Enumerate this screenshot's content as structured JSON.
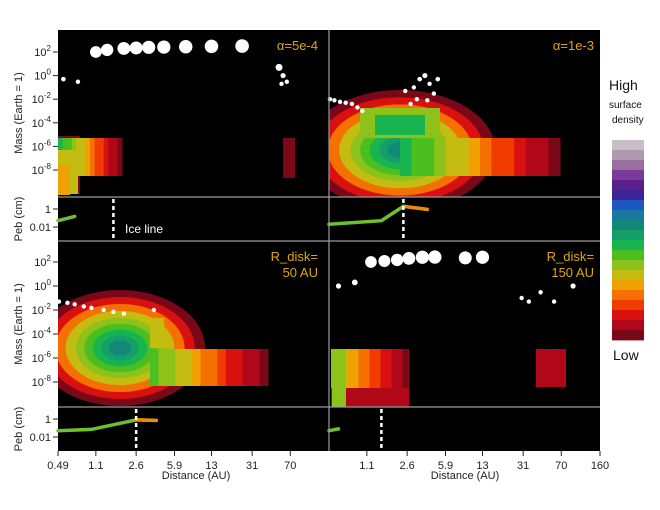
{
  "chart_data": {
    "type": "heatmap",
    "x": {
      "label": "Distance (AU)",
      "scale": "log",
      "ticks": [
        "0.49",
        "1.1",
        "2.6",
        "5.9",
        "13",
        "31",
        "70",
        "160"
      ],
      "range": [
        0.49,
        160
      ]
    },
    "y_mass": {
      "label": "Mass (Earth = 1)",
      "scale": "log",
      "ticks": [
        "10^2",
        "10^0",
        "10^-2",
        "10^-4",
        "10^-6",
        "10^-8"
      ]
    },
    "y_peb": {
      "label": "Peb (cm)",
      "scale": "log",
      "ticks": [
        "1",
        "0.01"
      ]
    },
    "colorbar": {
      "high": "High",
      "high_sub": [
        "surface",
        "density"
      ],
      "low": "Low",
      "colors": [
        "#c8c0c8",
        "#b098b0",
        "#9870a0",
        "#7a3c98",
        "#5a1f8c",
        "#3c2494",
        "#1c58c0",
        "#1878a0",
        "#138878",
        "#12a068",
        "#18b450",
        "#4cbf20",
        "#8cc21a",
        "#c4bc10",
        "#f0a000",
        "#f47000",
        "#f03c00",
        "#d81010",
        "#b00818",
        "#7a0818"
      ]
    },
    "panels": [
      {
        "id": "top-left",
        "annotation": [
          "α=5e-4"
        ],
        "planets": [
          {
            "x": 1.1,
            "m": 100
          },
          {
            "x": 1.4,
            "m": 150
          },
          {
            "x": 2.0,
            "m": 200
          },
          {
            "x": 2.6,
            "m": 220
          },
          {
            "x": 3.4,
            "m": 250
          },
          {
            "x": 4.7,
            "m": 260
          },
          {
            "x": 7.5,
            "m": 280
          },
          {
            "x": 13,
            "m": 300
          },
          {
            "x": 25,
            "m": 320
          },
          {
            "x": 0.55,
            "m": 0.5
          },
          {
            "x": 0.75,
            "m": 0.3
          },
          {
            "x": 55,
            "m": 5
          },
          {
            "x": 60,
            "m": 1
          },
          {
            "x": 65,
            "m": 0.3
          },
          {
            "x": 58,
            "m": 0.2
          }
        ],
        "ice_line": 1.6,
        "ice_label": "Ice line",
        "peb_curve": [
          {
            "x": 0.49,
            "s": 0.05
          },
          {
            "x": 0.7,
            "s": 0.15
          }
        ]
      },
      {
        "id": "top-right",
        "annotation": [
          "α=1e-3"
        ],
        "planets": [
          {
            "x": 0.5,
            "m": 0.01
          },
          {
            "x": 0.55,
            "m": 0.008
          },
          {
            "x": 0.62,
            "m": 0.006
          },
          {
            "x": 0.7,
            "m": 0.005
          },
          {
            "x": 0.8,
            "m": 0.004
          },
          {
            "x": 0.9,
            "m": 0.002
          },
          {
            "x": 1.0,
            "m": 0.001
          },
          {
            "x": 2.5,
            "m": 0.05
          },
          {
            "x": 3.0,
            "m": 0.1
          },
          {
            "x": 3.4,
            "m": 0.5
          },
          {
            "x": 3.8,
            "m": 1
          },
          {
            "x": 4.2,
            "m": 0.2
          },
          {
            "x": 4.6,
            "m": 0.03
          },
          {
            "x": 5.0,
            "m": 0.5
          },
          {
            "x": 3.2,
            "m": 0.01
          },
          {
            "x": 4.0,
            "m": 0.008
          },
          {
            "x": 2.8,
            "m": 0.004
          }
        ],
        "ice_line": 2.4,
        "peb_curve": [
          {
            "x": 0.49,
            "s": 0.02
          },
          {
            "x": 1.5,
            "s": 0.05
          },
          {
            "x": 2.4,
            "s": 2
          },
          {
            "x": 4.0,
            "s": 0.9
          }
        ]
      },
      {
        "id": "bottom-left",
        "annotation": [
          "R_disk=",
          "50 AU"
        ],
        "planets": [
          {
            "x": 0.5,
            "m": 0.05
          },
          {
            "x": 0.6,
            "m": 0.04
          },
          {
            "x": 0.7,
            "m": 0.03
          },
          {
            "x": 0.85,
            "m": 0.02
          },
          {
            "x": 1.0,
            "m": 0.015
          },
          {
            "x": 1.3,
            "m": 0.01
          },
          {
            "x": 1.6,
            "m": 0.007
          },
          {
            "x": 2.0,
            "m": 0.005
          },
          {
            "x": 3.8,
            "m": 0.01
          }
        ],
        "ice_line": 2.6,
        "peb_curve": [
          {
            "x": 0.49,
            "s": 0.05
          },
          {
            "x": 1.0,
            "s": 0.07
          },
          {
            "x": 2.6,
            "s": 0.8
          },
          {
            "x": 4.0,
            "s": 0.7
          }
        ]
      },
      {
        "id": "bottom-right",
        "annotation": [
          "R_disk=",
          "150 AU"
        ],
        "planets": [
          {
            "x": 1.2,
            "m": 100
          },
          {
            "x": 1.6,
            "m": 120
          },
          {
            "x": 2.1,
            "m": 150
          },
          {
            "x": 2.7,
            "m": 200
          },
          {
            "x": 3.6,
            "m": 250
          },
          {
            "x": 4.7,
            "m": 260
          },
          {
            "x": 9,
            "m": 220
          },
          {
            "x": 13,
            "m": 250
          },
          {
            "x": 0.6,
            "m": 1
          },
          {
            "x": 0.85,
            "m": 2
          },
          {
            "x": 30,
            "m": 0.1
          },
          {
            "x": 35,
            "m": 0.05
          },
          {
            "x": 45,
            "m": 0.3
          },
          {
            "x": 60,
            "m": 0.05
          },
          {
            "x": 90,
            "m": 1
          }
        ],
        "ice_line": 1.5,
        "peb_curve": [
          {
            "x": 0.49,
            "s": 0.05
          },
          {
            "x": 0.6,
            "s": 0.08
          }
        ]
      }
    ]
  }
}
